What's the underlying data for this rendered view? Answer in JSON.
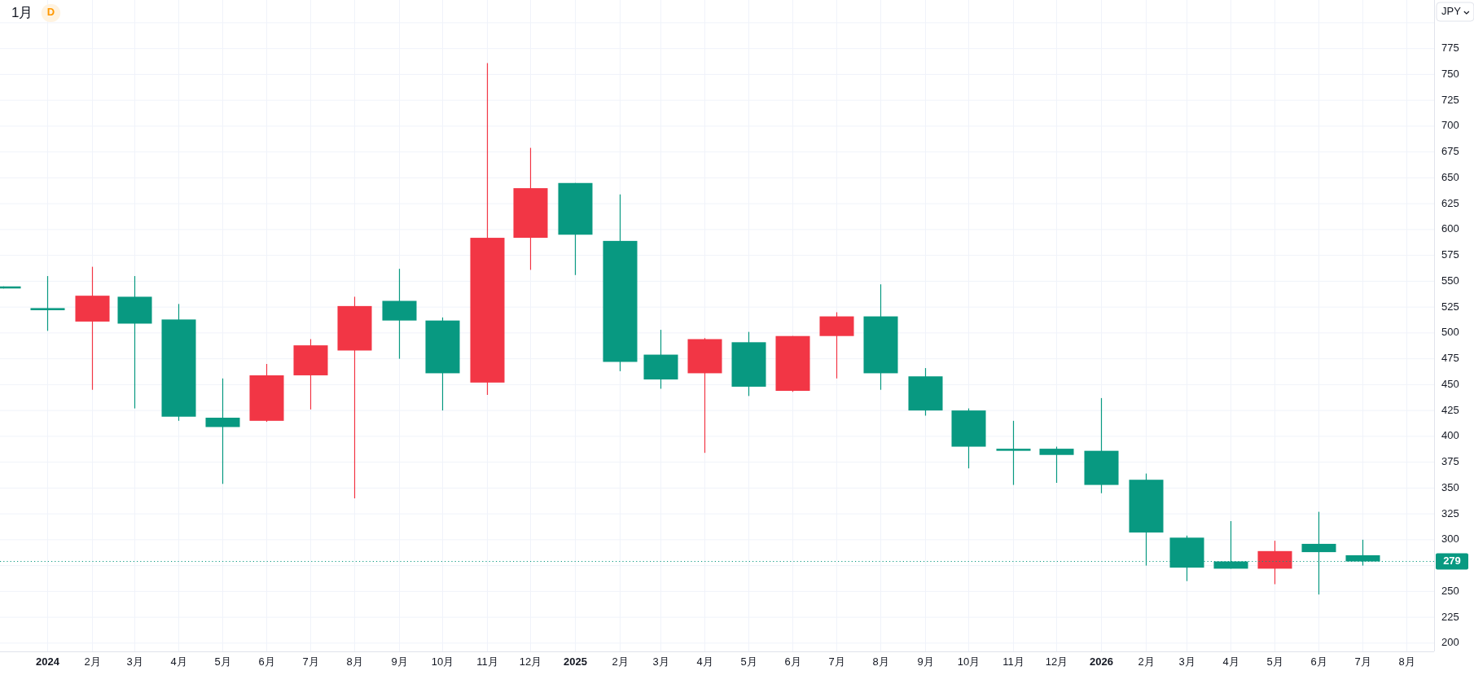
{
  "chart_data": {
    "type": "candlestick",
    "title": "1月",
    "annotations": [
      "D",
      "JPY"
    ],
    "x": [
      "2023-12",
      "2024-01",
      "2024-02",
      "2024-03",
      "2024-04",
      "2024-05",
      "2024-06",
      "2024-07",
      "2024-08",
      "2024-09",
      "2024-10",
      "2024-11",
      "2024-12",
      "2025-01",
      "2025-02",
      "2025-03",
      "2025-04",
      "2025-05",
      "2025-06",
      "2025-07",
      "2025-08",
      "2025-09",
      "2025-10",
      "2025-11",
      "2025-12",
      "2026-01",
      "2026-02",
      "2026-03",
      "2026-04",
      "2026-05",
      "2026-06",
      "2026-07"
    ],
    "ohlc": [
      [
        545,
        545,
        543,
        543
      ],
      [
        524,
        555,
        502,
        522
      ],
      [
        511,
        564,
        445,
        536
      ],
      [
        535,
        555,
        427,
        509
      ],
      [
        513,
        528,
        415,
        419
      ],
      [
        418,
        456,
        354,
        409
      ],
      [
        415,
        470,
        414,
        459
      ],
      [
        459,
        494,
        426,
        488
      ],
      [
        483,
        535,
        340,
        526
      ],
      [
        531,
        562,
        475,
        512
      ],
      [
        512,
        515,
        425,
        461
      ],
      [
        452,
        761,
        440,
        592
      ],
      [
        592,
        679,
        561,
        640
      ],
      [
        645,
        645,
        556,
        595
      ],
      [
        589,
        634,
        463,
        472
      ],
      [
        479,
        503,
        446,
        455
      ],
      [
        461,
        495,
        384,
        494
      ],
      [
        491,
        501,
        439,
        448
      ],
      [
        444,
        497,
        443,
        497
      ],
      [
        497,
        520,
        456,
        516
      ],
      [
        516,
        547,
        445,
        461
      ],
      [
        458,
        466,
        420,
        425
      ],
      [
        425,
        427,
        369,
        390
      ],
      [
        388,
        415,
        353,
        386
      ],
      [
        388,
        390,
        355,
        382
      ],
      [
        386,
        437,
        345,
        353
      ],
      [
        358,
        364,
        275,
        307
      ],
      [
        302,
        304,
        260,
        273
      ],
      [
        279,
        318,
        272,
        272
      ],
      [
        272,
        299,
        257,
        289
      ],
      [
        296,
        327,
        247,
        288
      ],
      [
        285,
        300,
        275,
        279
      ]
    ],
    "colors": [
      "#089981",
      "#089981",
      "#f23645",
      "#089981",
      "#089981",
      "#089981",
      "#f23645",
      "#f23645",
      "#f23645",
      "#089981",
      "#089981",
      "#f23645",
      "#f23645",
      "#089981",
      "#089981",
      "#089981",
      "#f23645",
      "#089981",
      "#f23645",
      "#f23645",
      "#089981",
      "#089981",
      "#089981",
      "#089981",
      "#089981",
      "#089981",
      "#089981",
      "#089981",
      "#089981",
      "#f23645",
      "#089981",
      "#089981"
    ],
    "xlim": [
      "2023-11-29",
      "2026-08-20"
    ],
    "xticks": [
      {
        "value": "2024-01",
        "label": "2024"
      },
      {
        "value": "2024-02",
        "label": "2月"
      },
      {
        "value": "2024-03",
        "label": "3月"
      },
      {
        "value": "2024-04",
        "label": "4月"
      },
      {
        "value": "2024-05",
        "label": "5月"
      },
      {
        "value": "2024-06",
        "label": "6月"
      },
      {
        "value": "2024-07",
        "label": "7月"
      },
      {
        "value": "2024-08",
        "label": "8月"
      },
      {
        "value": "2024-09",
        "label": "9月"
      },
      {
        "value": "2024-10",
        "label": "10月"
      },
      {
        "value": "2024-11",
        "label": "11月"
      },
      {
        "value": "2024-12",
        "label": "12月"
      },
      {
        "value": "2025-01",
        "label": "2025"
      },
      {
        "value": "2025-02",
        "label": "2月"
      },
      {
        "value": "2025-03",
        "label": "3月"
      },
      {
        "value": "2025-04",
        "label": "4月"
      },
      {
        "value": "2025-05",
        "label": "5月"
      },
      {
        "value": "2025-06",
        "label": "6月"
      },
      {
        "value": "2025-07",
        "label": "7月"
      },
      {
        "value": "2025-08",
        "label": "8月"
      },
      {
        "value": "2025-09",
        "label": "9月"
      },
      {
        "value": "2025-10",
        "label": "10月"
      },
      {
        "value": "2025-11",
        "label": "11月"
      },
      {
        "value": "2025-12",
        "label": "12月"
      },
      {
        "value": "2026-01",
        "label": "2026"
      },
      {
        "value": "2026-02",
        "label": "2月"
      },
      {
        "value": "2026-03",
        "label": "3月"
      },
      {
        "value": "2026-04",
        "label": "4月"
      },
      {
        "value": "2026-05",
        "label": "5月"
      },
      {
        "value": "2026-06",
        "label": "6月"
      },
      {
        "value": "2026-07",
        "label": "7月"
      },
      {
        "value": "2026-08",
        "label": "8月"
      }
    ],
    "ylim": [
      192,
      822
    ],
    "yticks": [
      200,
      225,
      250,
      {
        "value": 275,
        "label": null
      },
      300,
      325,
      350,
      375,
      400,
      425,
      450,
      475,
      500,
      525,
      550,
      575,
      600,
      625,
      650,
      675,
      700,
      725,
      750,
      775,
      {
        "value": 800,
        "label": null
      }
    ],
    "grid": true,
    "ref_lines": [
      {
        "axis": "y",
        "value": 279,
        "label": "279",
        "color": "#089981",
        "line_style": "dotted"
      }
    ]
  }
}
